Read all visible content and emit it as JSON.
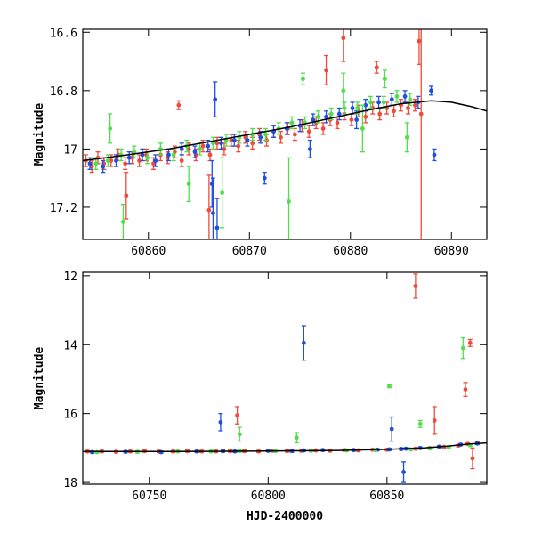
{
  "chart_data": [
    {
      "type": "scatter",
      "title": "",
      "xlabel": "",
      "ylabel": "Magnitude",
      "xlim": [
        60853.5,
        60893.5
      ],
      "ylim": [
        17.31,
        16.59
      ],
      "y_inverted": true,
      "x_ticks": [
        60860,
        60870,
        60880,
        60890
      ],
      "y_ticks": [
        16.6,
        16.8,
        17,
        17.2
      ],
      "y_tick_labels": [
        "16.6",
        "16.8",
        "17",
        "17.2"
      ],
      "grid": false,
      "legend": "none",
      "colors": {
        "blue": "#1f4fe0",
        "red": "#f04a3a",
        "green": "#4ee04a",
        "model": "#000000"
      },
      "model_curve": {
        "x": [
          60853.5,
          60858,
          60862,
          60866,
          60870,
          60874,
          60878,
          60882,
          60885,
          60888,
          60890,
          60892,
          60893.5
        ],
        "y": [
          17.04,
          17.02,
          17.0,
          16.975,
          16.95,
          16.925,
          16.895,
          16.865,
          16.845,
          16.835,
          16.84,
          16.855,
          16.87
        ]
      },
      "series": [
        {
          "color": "red",
          "x": [
            60853.8,
            60854.4,
            60855.0,
            60855.6,
            60856.3,
            60857.0,
            60857.7,
            60858.4,
            60859.1,
            60859.8,
            60860.5,
            60861.2,
            60861.9,
            60862.6,
            60863.3,
            60864.0,
            60864.7,
            60865.4,
            60866.1,
            60866.8,
            60867.5,
            60868.2,
            60868.9,
            60869.6,
            60870.3,
            60871.0,
            60871.7,
            60872.4,
            60873.1,
            60873.8,
            60874.5,
            60875.2,
            60875.9,
            60876.6,
            60877.3,
            60878.0,
            60878.7,
            60879.4,
            60880.1,
            60880.8,
            60881.5,
            60882.2,
            60882.9,
            60883.6,
            60884.3,
            60885.0,
            60885.7,
            60886.4,
            60863.0,
            60857.8,
            60866.0,
            60879.3,
            60877.6,
            60882.6,
            60887.0,
            60886.8
          ],
          "y": [
            17.04,
            17.06,
            17.03,
            17.05,
            17.04,
            17.02,
            17.05,
            17.03,
            17.04,
            17.02,
            17.05,
            17.02,
            17.03,
            17.01,
            17.04,
            17.0,
            17.02,
            16.99,
            17.02,
            16.98,
            17.0,
            16.97,
            16.99,
            16.96,
            16.98,
            16.95,
            16.97,
            16.94,
            16.96,
            16.93,
            16.95,
            16.92,
            16.94,
            16.91,
            16.93,
            16.9,
            16.91,
            16.88,
            16.9,
            16.87,
            16.89,
            16.86,
            16.88,
            16.86,
            16.87,
            16.85,
            16.86,
            16.85,
            16.85,
            17.16,
            17.21,
            16.62,
            16.73,
            16.72,
            16.88,
            16.63
          ],
          "err": [
            0.02,
            0.02,
            0.02,
            0.02,
            0.02,
            0.02,
            0.02,
            0.02,
            0.02,
            0.02,
            0.02,
            0.02,
            0.02,
            0.02,
            0.02,
            0.02,
            0.02,
            0.02,
            0.02,
            0.02,
            0.02,
            0.02,
            0.02,
            0.02,
            0.02,
            0.02,
            0.02,
            0.02,
            0.02,
            0.02,
            0.02,
            0.02,
            0.02,
            0.02,
            0.02,
            0.02,
            0.02,
            0.02,
            0.02,
            0.02,
            0.02,
            0.02,
            0.02,
            0.02,
            0.02,
            0.02,
            0.02,
            0.02,
            0.015,
            0.08,
            0.12,
            0.08,
            0.05,
            0.02,
            0.45,
            0.08
          ]
        },
        {
          "color": "blue",
          "x": [
            60854.2,
            60855.5,
            60856.8,
            60858.1,
            60859.4,
            60860.7,
            60862.0,
            60863.3,
            60864.6,
            60865.9,
            60867.2,
            60868.5,
            60869.8,
            60871.1,
            60872.4,
            60873.7,
            60875.0,
            60876.3,
            60877.6,
            60878.9,
            60880.2,
            60881.5,
            60882.8,
            60884.1,
            60885.4,
            60886.7,
            60888.0,
            60888.3,
            60866.4,
            60866.6,
            60866.3,
            60866.8,
            60871.5,
            60876.0,
            60880.6
          ],
          "y": [
            17.05,
            17.06,
            17.04,
            17.03,
            17.02,
            17.04,
            17.02,
            17.0,
            17.01,
            16.99,
            16.98,
            16.97,
            16.97,
            16.96,
            16.94,
            16.93,
            16.92,
            16.9,
            16.89,
            16.88,
            16.86,
            16.85,
            16.84,
            16.83,
            16.82,
            16.84,
            16.8,
            17.02,
            17.22,
            16.83,
            17.12,
            17.27,
            17.1,
            17.0,
            16.9
          ],
          "err": [
            0.02,
            0.02,
            0.02,
            0.02,
            0.02,
            0.02,
            0.02,
            0.02,
            0.02,
            0.02,
            0.02,
            0.02,
            0.02,
            0.02,
            0.02,
            0.02,
            0.02,
            0.02,
            0.02,
            0.02,
            0.02,
            0.02,
            0.02,
            0.02,
            0.02,
            0.02,
            0.015,
            0.02,
            0.12,
            0.06,
            0.08,
            0.1,
            0.02,
            0.03,
            0.03
          ]
        },
        {
          "color": "green",
          "x": [
            60854.8,
            60856.0,
            60857.3,
            60858.6,
            60859.9,
            60861.2,
            60862.5,
            60863.8,
            60865.1,
            60866.4,
            60867.7,
            60869.0,
            60870.3,
            60871.6,
            60872.9,
            60874.2,
            60875.5,
            60876.8,
            60878.1,
            60879.4,
            60880.7,
            60882.0,
            60883.3,
            60884.6,
            60885.9,
            60856.2,
            60857.5,
            60864.0,
            60867.3,
            60873.9,
            60875.3,
            60879.3,
            60881.2,
            60883.4,
            60885.6
          ],
          "y": [
            17.05,
            17.04,
            17.02,
            17.01,
            17.03,
            17.0,
            17.02,
            16.99,
            17.0,
            16.98,
            16.97,
            16.96,
            16.95,
            16.95,
            16.93,
            16.91,
            16.91,
            16.89,
            16.88,
            16.86,
            16.86,
            16.84,
            16.84,
            16.82,
            16.83,
            16.93,
            17.25,
            17.12,
            17.15,
            17.18,
            16.76,
            16.8,
            16.93,
            16.76,
            16.96
          ],
          "err": [
            0.02,
            0.02,
            0.02,
            0.02,
            0.02,
            0.02,
            0.02,
            0.02,
            0.02,
            0.02,
            0.02,
            0.02,
            0.02,
            0.02,
            0.02,
            0.02,
            0.02,
            0.02,
            0.02,
            0.02,
            0.02,
            0.02,
            0.02,
            0.02,
            0.02,
            0.05,
            0.06,
            0.06,
            0.12,
            0.15,
            0.02,
            0.06,
            0.08,
            0.03,
            0.05
          ]
        }
      ]
    },
    {
      "type": "scatter",
      "title": "",
      "xlabel": "HJD-2400000",
      "ylabel": "Magnitude",
      "xlim": [
        60722,
        60892
      ],
      "ylim": [
        18.05,
        11.9
      ],
      "y_inverted": true,
      "x_ticks": [
        60750,
        60800,
        60850
      ],
      "y_ticks": [
        12,
        14,
        16,
        18
      ],
      "y_tick_labels": [
        "12",
        "14",
        "16",
        "18"
      ],
      "grid": false,
      "legend": "none",
      "colors": {
        "blue": "#1f4fe0",
        "red": "#f04a3a",
        "green": "#4ee04a",
        "model": "#000000"
      },
      "model_curve": {
        "x": [
          60722,
          60760,
          60800,
          60830,
          60850,
          60865,
          60875,
          60885,
          60892
        ],
        "y": [
          17.1,
          17.1,
          17.09,
          17.07,
          17.04,
          17.0,
          16.95,
          16.88,
          16.85
        ]
      },
      "series": [
        {
          "color": "red",
          "x": [
            60724,
            60730,
            60736,
            60742,
            60748,
            60754,
            60760,
            60766,
            60772,
            60778,
            60784,
            60790,
            60796,
            60802,
            60808,
            60814,
            60820,
            60826,
            60832,
            60838,
            60844,
            60850,
            60856,
            60862,
            60868,
            60874,
            60880,
            60884,
            60888,
            60787,
            60862,
            60870,
            60883,
            60885,
            60886
          ],
          "y": [
            17.1,
            17.1,
            17.11,
            17.1,
            17.09,
            17.1,
            17.1,
            17.09,
            17.1,
            17.1,
            17.09,
            17.09,
            17.1,
            17.08,
            17.09,
            17.08,
            17.07,
            17.08,
            17.06,
            17.07,
            17.05,
            17.05,
            17.03,
            17.02,
            17.0,
            16.97,
            16.93,
            16.88,
            16.85,
            16.05,
            12.3,
            16.2,
            15.3,
            13.95,
            17.3
          ],
          "err": [
            0.03,
            0.03,
            0.03,
            0.03,
            0.03,
            0.03,
            0.03,
            0.03,
            0.03,
            0.03,
            0.03,
            0.03,
            0.03,
            0.03,
            0.03,
            0.03,
            0.03,
            0.03,
            0.03,
            0.03,
            0.03,
            0.03,
            0.03,
            0.03,
            0.03,
            0.03,
            0.03,
            0.03,
            0.03,
            0.25,
            0.35,
            0.4,
            0.2,
            0.1,
            0.3
          ]
        },
        {
          "color": "blue",
          "x": [
            60726,
            60740,
            60755,
            60770,
            60781,
            60786,
            60800,
            60810,
            60815,
            60823,
            60836,
            60846,
            60851,
            60856,
            60858,
            60864,
            60872,
            60881,
            60888,
            60815,
            60780,
            60852,
            60857
          ],
          "y": [
            17.12,
            17.11,
            17.12,
            17.1,
            17.09,
            17.1,
            17.08,
            17.09,
            17.07,
            17.06,
            17.06,
            17.05,
            17.04,
            17.03,
            17.02,
            17.0,
            16.96,
            16.9,
            16.87,
            13.95,
            16.25,
            16.45,
            17.7
          ],
          "err": [
            0.03,
            0.03,
            0.03,
            0.03,
            0.03,
            0.03,
            0.03,
            0.03,
            0.03,
            0.03,
            0.03,
            0.03,
            0.03,
            0.03,
            0.03,
            0.03,
            0.03,
            0.03,
            0.03,
            0.5,
            0.25,
            0.35,
            0.3
          ]
        },
        {
          "color": "green",
          "x": [
            60728,
            60745,
            60762,
            60776,
            60788,
            60803,
            60818,
            60833,
            60845,
            60860,
            60868,
            60876,
            60885,
            60851,
            60864,
            60882,
            60788,
            60812
          ],
          "y": [
            17.12,
            17.11,
            17.1,
            17.1,
            17.09,
            17.09,
            17.08,
            17.07,
            17.06,
            17.04,
            17.01,
            16.98,
            16.92,
            15.2,
            16.3,
            14.1,
            16.6,
            16.7
          ],
          "err": [
            0.03,
            0.03,
            0.03,
            0.03,
            0.03,
            0.03,
            0.03,
            0.03,
            0.03,
            0.03,
            0.03,
            0.03,
            0.03,
            0.05,
            0.1,
            0.3,
            0.2,
            0.15
          ]
        }
      ]
    }
  ]
}
